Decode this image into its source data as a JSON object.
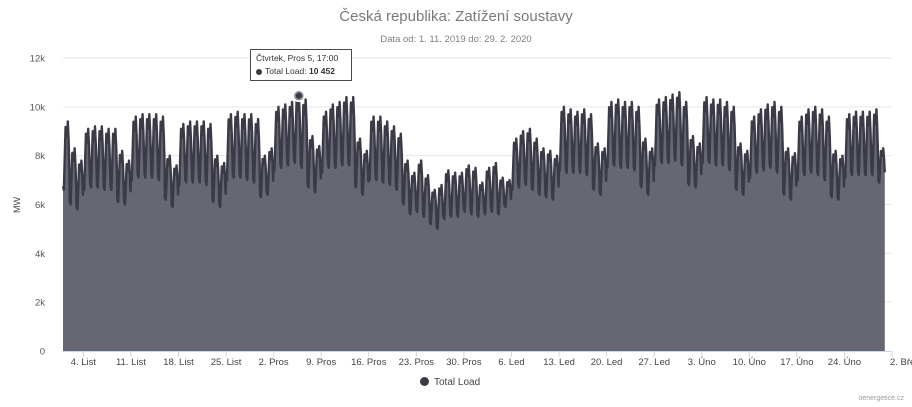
{
  "chart_data": {
    "type": "area",
    "title": "Česká republika: Zatížení soustavy",
    "subtitle": "Data od: 1. 11. 2019 do: 29. 2. 2020",
    "ylabel": "MW",
    "ylim": [
      0,
      12000
    ],
    "y_ticks": [
      "0",
      "2k",
      "4k",
      "6k",
      "8k",
      "10k",
      "12k"
    ],
    "x_range": [
      "2019-11-01",
      "2020-03-02"
    ],
    "x_ticks": [
      {
        "date": "2019-11-04",
        "label": "4. List"
      },
      {
        "date": "2019-11-11",
        "label": "11. List"
      },
      {
        "date": "2019-11-18",
        "label": "18. List"
      },
      {
        "date": "2019-11-25",
        "label": "25. List"
      },
      {
        "date": "2019-12-02",
        "label": "2. Pros"
      },
      {
        "date": "2019-12-09",
        "label": "9. Pros"
      },
      {
        "date": "2019-12-16",
        "label": "16. Pros"
      },
      {
        "date": "2019-12-23",
        "label": "23. Pros"
      },
      {
        "date": "2019-12-30",
        "label": "30. Pros"
      },
      {
        "date": "2020-01-06",
        "label": "6. Led"
      },
      {
        "date": "2020-01-13",
        "label": "13. Led"
      },
      {
        "date": "2020-01-20",
        "label": "20. Led"
      },
      {
        "date": "2020-01-27",
        "label": "27. Led"
      },
      {
        "date": "2020-02-03",
        "label": "3. Úno"
      },
      {
        "date": "2020-02-10",
        "label": "10. Úno"
      },
      {
        "date": "2020-02-17",
        "label": "17. Úno"
      },
      {
        "date": "2020-02-24",
        "label": "24. Úno"
      },
      {
        "date": "2020-03-02",
        "label": "2. Bře"
      }
    ],
    "grid": true,
    "series": [
      {
        "name": "Total Load",
        "color": "#3b3b48",
        "fill": "#5f5f6c",
        "daily_peaks": [
          {
            "date": "2019-11-01",
            "peak": 9400,
            "trough": 6600
          },
          {
            "date": "2019-11-02",
            "peak": 8300,
            "trough": 6000
          },
          {
            "date": "2019-11-03",
            "peak": 7800,
            "trough": 5800
          },
          {
            "date": "2019-11-04",
            "peak": 9100,
            "trough": 6600
          },
          {
            "date": "2019-11-05",
            "peak": 9200,
            "trough": 6700
          },
          {
            "date": "2019-11-06",
            "peak": 9200,
            "trough": 6700
          },
          {
            "date": "2019-11-07",
            "peak": 9100,
            "trough": 6600
          },
          {
            "date": "2019-11-08",
            "peak": 9100,
            "trough": 6600
          },
          {
            "date": "2019-11-09",
            "peak": 8200,
            "trough": 6100
          },
          {
            "date": "2019-11-10",
            "peak": 7800,
            "trough": 6000
          },
          {
            "date": "2019-11-11",
            "peak": 9600,
            "trough": 7000
          },
          {
            "date": "2019-11-12",
            "peak": 9700,
            "trough": 7100
          },
          {
            "date": "2019-11-13",
            "peak": 9700,
            "trough": 7100
          },
          {
            "date": "2019-11-14",
            "peak": 9700,
            "trough": 7100
          },
          {
            "date": "2019-11-15",
            "peak": 9600,
            "trough": 7000
          },
          {
            "date": "2019-11-16",
            "peak": 8000,
            "trough": 6200
          },
          {
            "date": "2019-11-17",
            "peak": 7600,
            "trough": 5900
          },
          {
            "date": "2019-11-18",
            "peak": 9300,
            "trough": 6800
          },
          {
            "date": "2019-11-19",
            "peak": 9400,
            "trough": 6900
          },
          {
            "date": "2019-11-20",
            "peak": 9400,
            "trough": 6900
          },
          {
            "date": "2019-11-21",
            "peak": 9400,
            "trough": 6900
          },
          {
            "date": "2019-11-22",
            "peak": 9300,
            "trough": 6800
          },
          {
            "date": "2019-11-23",
            "peak": 8000,
            "trough": 6100
          },
          {
            "date": "2019-11-24",
            "peak": 7700,
            "trough": 5900
          },
          {
            "date": "2019-11-25",
            "peak": 9700,
            "trough": 7000
          },
          {
            "date": "2019-11-26",
            "peak": 9800,
            "trough": 7100
          },
          {
            "date": "2019-11-27",
            "peak": 9700,
            "trough": 7100
          },
          {
            "date": "2019-11-28",
            "peak": 9700,
            "trough": 7000
          },
          {
            "date": "2019-11-29",
            "peak": 9500,
            "trough": 6900
          },
          {
            "date": "2019-11-30",
            "peak": 8000,
            "trough": 6300
          },
          {
            "date": "2019-12-01",
            "peak": 8300,
            "trough": 6400
          },
          {
            "date": "2019-12-02",
            "peak": 10000,
            "trough": 7400
          },
          {
            "date": "2019-12-03",
            "peak": 10100,
            "trough": 7500
          },
          {
            "date": "2019-12-04",
            "peak": 10200,
            "trough": 7600
          },
          {
            "date": "2019-12-05",
            "peak": 10452,
            "trough": 7700
          },
          {
            "date": "2019-12-06",
            "peak": 10300,
            "trough": 7500
          },
          {
            "date": "2019-12-07",
            "peak": 8800,
            "trough": 6700
          },
          {
            "date": "2019-12-08",
            "peak": 8400,
            "trough": 6500
          },
          {
            "date": "2019-12-09",
            "peak": 9800,
            "trough": 7300
          },
          {
            "date": "2019-12-10",
            "peak": 10100,
            "trough": 7500
          },
          {
            "date": "2019-12-11",
            "peak": 10200,
            "trough": 7500
          },
          {
            "date": "2019-12-12",
            "peak": 10400,
            "trough": 7600
          },
          {
            "date": "2019-12-13",
            "peak": 10400,
            "trough": 7600
          },
          {
            "date": "2019-12-14",
            "peak": 8700,
            "trough": 6700
          },
          {
            "date": "2019-12-15",
            "peak": 8200,
            "trough": 6400
          },
          {
            "date": "2019-12-16",
            "peak": 9600,
            "trough": 7000
          },
          {
            "date": "2019-12-17",
            "peak": 9600,
            "trough": 7000
          },
          {
            "date": "2019-12-18",
            "peak": 9400,
            "trough": 6900
          },
          {
            "date": "2019-12-19",
            "peak": 9200,
            "trough": 6800
          },
          {
            "date": "2019-12-20",
            "peak": 8900,
            "trough": 6600
          },
          {
            "date": "2019-12-21",
            "peak": 7800,
            "trough": 6000
          },
          {
            "date": "2019-12-22",
            "peak": 7300,
            "trough": 5600
          },
          {
            "date": "2019-12-23",
            "peak": 7800,
            "trough": 5700
          },
          {
            "date": "2019-12-24",
            "peak": 7200,
            "trough": 5500
          },
          {
            "date": "2019-12-25",
            "peak": 6600,
            "trough": 5200
          },
          {
            "date": "2019-12-26",
            "peak": 6800,
            "trough": 5000
          },
          {
            "date": "2019-12-27",
            "peak": 7400,
            "trough": 5400
          },
          {
            "date": "2019-12-28",
            "peak": 7300,
            "trough": 5500
          },
          {
            "date": "2019-12-29",
            "peak": 7300,
            "trough": 5500
          },
          {
            "date": "2019-12-30",
            "peak": 7600,
            "trough": 5700
          },
          {
            "date": "2019-12-31",
            "peak": 7500,
            "trough": 5600
          },
          {
            "date": "2020-01-01",
            "peak": 6900,
            "trough": 5500
          },
          {
            "date": "2020-01-02",
            "peak": 7500,
            "trough": 5600
          },
          {
            "date": "2020-01-03",
            "peak": 7700,
            "trough": 5700
          },
          {
            "date": "2020-01-04",
            "peak": 7100,
            "trough": 5600
          },
          {
            "date": "2020-01-05",
            "peak": 7000,
            "trough": 5900
          },
          {
            "date": "2020-01-06",
            "peak": 8700,
            "trough": 6600
          },
          {
            "date": "2020-01-07",
            "peak": 9000,
            "trough": 6700
          },
          {
            "date": "2020-01-08",
            "peak": 9100,
            "trough": 6800
          },
          {
            "date": "2020-01-09",
            "peak": 8700,
            "trough": 6600
          },
          {
            "date": "2020-01-10",
            "peak": 8300,
            "trough": 6400
          },
          {
            "date": "2020-01-11",
            "peak": 8200,
            "trough": 6300
          },
          {
            "date": "2020-01-12",
            "peak": 8000,
            "trough": 6200
          },
          {
            "date": "2020-01-13",
            "peak": 10000,
            "trough": 7400
          },
          {
            "date": "2020-01-14",
            "peak": 9900,
            "trough": 7300
          },
          {
            "date": "2020-01-15",
            "peak": 9800,
            "trough": 7300
          },
          {
            "date": "2020-01-16",
            "peak": 9900,
            "trough": 7300
          },
          {
            "date": "2020-01-17",
            "peak": 9700,
            "trough": 7200
          },
          {
            "date": "2020-01-18",
            "peak": 8500,
            "trough": 6600
          },
          {
            "date": "2020-01-19",
            "peak": 8300,
            "trough": 6400
          },
          {
            "date": "2020-01-20",
            "peak": 10200,
            "trough": 7500
          },
          {
            "date": "2020-01-21",
            "peak": 10300,
            "trough": 7600
          },
          {
            "date": "2020-01-22",
            "peak": 10200,
            "trough": 7500
          },
          {
            "date": "2020-01-23",
            "peak": 10200,
            "trough": 7500
          },
          {
            "date": "2020-01-24",
            "peak": 10000,
            "trough": 7400
          },
          {
            "date": "2020-01-25",
            "peak": 8700,
            "trough": 6700
          },
          {
            "date": "2020-01-26",
            "peak": 8300,
            "trough": 6400
          },
          {
            "date": "2020-01-27",
            "peak": 10300,
            "trough": 7600
          },
          {
            "date": "2020-01-28",
            "peak": 10400,
            "trough": 7700
          },
          {
            "date": "2020-01-29",
            "peak": 10500,
            "trough": 7700
          },
          {
            "date": "2020-01-30",
            "peak": 10600,
            "trough": 7800
          },
          {
            "date": "2020-01-31",
            "peak": 10200,
            "trough": 7600
          },
          {
            "date": "2020-02-01",
            "peak": 8800,
            "trough": 6800
          },
          {
            "date": "2020-02-02",
            "peak": 8500,
            "trough": 6700
          },
          {
            "date": "2020-02-03",
            "peak": 10400,
            "trough": 7700
          },
          {
            "date": "2020-02-04",
            "peak": 10300,
            "trough": 7700
          },
          {
            "date": "2020-02-05",
            "peak": 10300,
            "trough": 7600
          },
          {
            "date": "2020-02-06",
            "peak": 10200,
            "trough": 7600
          },
          {
            "date": "2020-02-07",
            "peak": 10000,
            "trough": 7400
          },
          {
            "date": "2020-02-08",
            "peak": 8500,
            "trough": 6600
          },
          {
            "date": "2020-02-09",
            "peak": 8200,
            "trough": 6400
          },
          {
            "date": "2020-02-10",
            "peak": 9600,
            "trough": 7100
          },
          {
            "date": "2020-02-11",
            "peak": 9900,
            "trough": 7300
          },
          {
            "date": "2020-02-12",
            "peak": 10100,
            "trough": 7400
          },
          {
            "date": "2020-02-13",
            "peak": 10200,
            "trough": 7500
          },
          {
            "date": "2020-02-14",
            "peak": 10000,
            "trough": 7300
          },
          {
            "date": "2020-02-15",
            "peak": 8300,
            "trough": 6400
          },
          {
            "date": "2020-02-16",
            "peak": 8100,
            "trough": 6200
          },
          {
            "date": "2020-02-17",
            "peak": 9600,
            "trough": 7000
          },
          {
            "date": "2020-02-18",
            "peak": 9900,
            "trough": 7200
          },
          {
            "date": "2020-02-19",
            "peak": 10000,
            "trough": 7300
          },
          {
            "date": "2020-02-20",
            "peak": 9900,
            "trough": 7200
          },
          {
            "date": "2020-02-21",
            "peak": 9600,
            "trough": 7000
          },
          {
            "date": "2020-02-22",
            "peak": 8200,
            "trough": 6300
          },
          {
            "date": "2020-02-23",
            "peak": 8000,
            "trough": 6200
          },
          {
            "date": "2020-02-24",
            "peak": 9700,
            "trough": 7100
          },
          {
            "date": "2020-02-25",
            "peak": 9800,
            "trough": 7200
          },
          {
            "date": "2020-02-26",
            "peak": 9800,
            "trough": 7200
          },
          {
            "date": "2020-02-27",
            "peak": 9800,
            "trough": 7200
          },
          {
            "date": "2020-02-28",
            "peak": 9900,
            "trough": 7200
          },
          {
            "date": "2020-02-29",
            "peak": 8300,
            "trough": 6900
          }
        ]
      }
    ],
    "tooltip": {
      "date_label": "Čtvrtek, Pros 5, 17:00",
      "series_label": "Total Load",
      "value": "10 452",
      "point_date": "2019-12-05"
    },
    "legend": {
      "position": "bottom-center",
      "label": "Total Load"
    },
    "credit": "oenergetice.cz"
  }
}
